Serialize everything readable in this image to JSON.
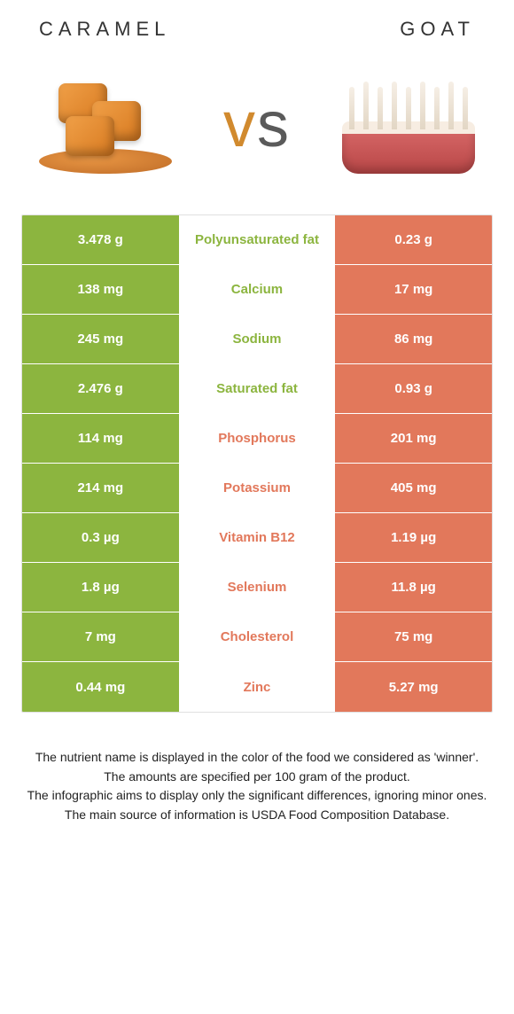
{
  "header": {
    "left_title": "CARAMEL",
    "right_title": "GOAT",
    "vs_v": "v",
    "vs_s": "s"
  },
  "colors": {
    "left_bg": "#8cb53f",
    "right_bg": "#e2785b",
    "left_text": "#ffffff",
    "right_text": "#ffffff",
    "mid_winner_left": "#8cb53f",
    "mid_winner_right": "#e2785b"
  },
  "rows": [
    {
      "label": "Polyunsaturated fat",
      "left": "3.478 g",
      "right": "0.23 g",
      "winner": "left"
    },
    {
      "label": "Calcium",
      "left": "138 mg",
      "right": "17 mg",
      "winner": "left"
    },
    {
      "label": "Sodium",
      "left": "245 mg",
      "right": "86 mg",
      "winner": "left"
    },
    {
      "label": "Saturated fat",
      "left": "2.476 g",
      "right": "0.93 g",
      "winner": "left"
    },
    {
      "label": "Phosphorus",
      "left": "114 mg",
      "right": "201 mg",
      "winner": "right"
    },
    {
      "label": "Potassium",
      "left": "214 mg",
      "right": "405 mg",
      "winner": "right"
    },
    {
      "label": "Vitamin B12",
      "left": "0.3 µg",
      "right": "1.19 µg",
      "winner": "right"
    },
    {
      "label": "Selenium",
      "left": "1.8 µg",
      "right": "11.8 µg",
      "winner": "right"
    },
    {
      "label": "Cholesterol",
      "left": "7 mg",
      "right": "75 mg",
      "winner": "right"
    },
    {
      "label": "Zinc",
      "left": "0.44 mg",
      "right": "5.27 mg",
      "winner": "right"
    }
  ],
  "footnotes": [
    "The nutrient name is displayed in the color of the food we considered as 'winner'.",
    "The amounts are specified per 100 gram of the product.",
    "The infographic aims to display only the significant differences, ignoring minor ones.",
    "The main source of information is USDA Food Composition Database."
  ]
}
